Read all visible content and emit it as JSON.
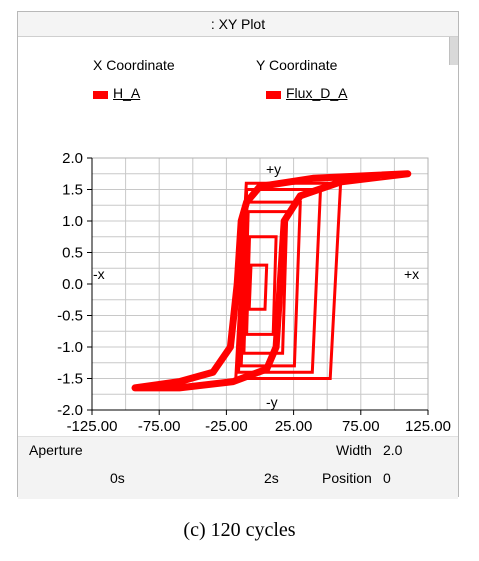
{
  "window": {
    "title": ": XY Plot"
  },
  "legend": {
    "x_header": "X Coordinate",
    "y_header": "Y Coordinate",
    "x_signal": "H_A",
    "y_signal": "Flux_D_A",
    "series_color": "#ff0000"
  },
  "chart_data": {
    "type": "line",
    "x_ticks": [
      "-125.00",
      "-75.00",
      "-25.00",
      "25.00",
      "75.00",
      "125.00"
    ],
    "y_ticks": [
      "2.0",
      "1.5",
      "1.0",
      "0.5",
      "0.0",
      "-0.5",
      "-1.0",
      "-1.5",
      "-2.0"
    ],
    "xlim": [
      -125,
      125
    ],
    "ylim": [
      -2,
      2
    ],
    "grid": true,
    "axis_markers": {
      "plus_y": "+y",
      "minus_y": "-y",
      "plus_x": "+x",
      "minus_x": "-x"
    },
    "major_loop": {
      "upper": [
        [
          -93,
          -1.65
        ],
        [
          -60,
          -1.55
        ],
        [
          -35,
          -1.4
        ],
        [
          -22,
          -1.0
        ],
        [
          -17,
          0.0
        ],
        [
          -14,
          1.0
        ],
        [
          -10,
          1.3
        ],
        [
          0,
          1.55
        ],
        [
          40,
          1.68
        ],
        [
          110,
          1.75
        ]
      ],
      "lower": [
        [
          110,
          1.75
        ],
        [
          60,
          1.62
        ],
        [
          30,
          1.4
        ],
        [
          18,
          1.0
        ],
        [
          15,
          0.0
        ],
        [
          12,
          -1.0
        ],
        [
          5,
          -1.35
        ],
        [
          -20,
          -1.55
        ],
        [
          -60,
          -1.65
        ],
        [
          -93,
          -1.65
        ]
      ]
    },
    "minor_loops": [
      {
        "x": [
          -18,
          60
        ],
        "y": [
          -1.5,
          1.6
        ]
      },
      {
        "x": [
          -16,
          45
        ],
        "y": [
          -1.4,
          1.5
        ]
      },
      {
        "x": [
          -14,
          30
        ],
        "y": [
          -1.3,
          1.3
        ]
      },
      {
        "x": [
          -12,
          20
        ],
        "y": [
          -1.1,
          1.15
        ]
      },
      {
        "x": [
          -10,
          12
        ],
        "y": [
          -0.8,
          0.75
        ]
      },
      {
        "x": [
          -8,
          5
        ],
        "y": [
          -0.4,
          0.3
        ]
      }
    ]
  },
  "controls": {
    "aperture_label": "Aperture",
    "width_label": "Width",
    "width_value": "2.0",
    "position_label": "Position",
    "position_value": "0",
    "time_start": "0s",
    "time_end": "2s"
  },
  "caption": "(c)  120  cycles"
}
